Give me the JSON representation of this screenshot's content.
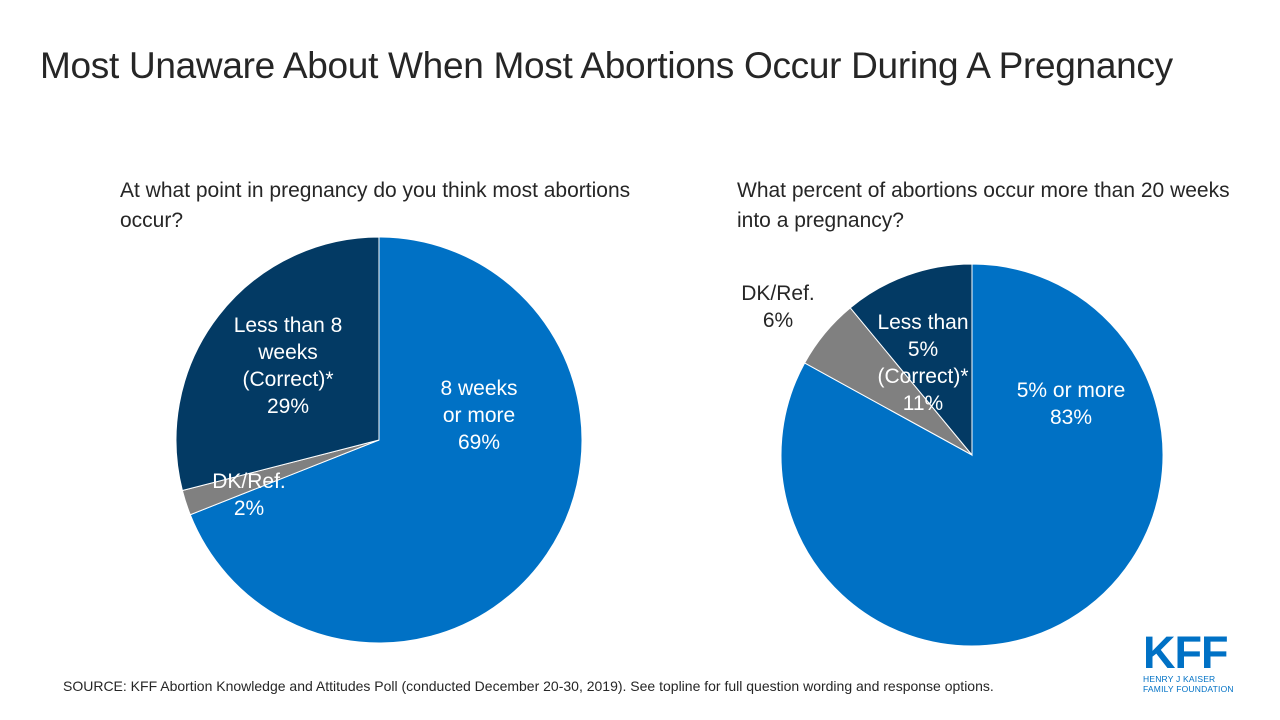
{
  "title": "Most Unaware About When Most Abortions Occur During A Pregnancy",
  "source": "SOURCE: KFF Abortion Knowledge and Attitudes Poll (conducted December 20-30, 2019). See topline for full question wording and response options.",
  "logo": {
    "word": "KFF",
    "line1": "HENRY J KAISER",
    "line2": "FAMILY FOUNDATION"
  },
  "colors": {
    "blue": "#0071c5",
    "navy": "#033a64",
    "gray": "#808080"
  },
  "chart_data": [
    {
      "type": "pie",
      "title": "At what point in pregnancy do you think most abortions occur?",
      "slices": [
        {
          "label_lines": [
            "8 weeks",
            "or more",
            "69%"
          ],
          "category": "8 weeks or more",
          "value": 69,
          "color": "#0071c5"
        },
        {
          "label_lines": [
            "DK/Ref.",
            "2%"
          ],
          "category": "DK/Ref.",
          "value": 2,
          "color": "#808080"
        },
        {
          "label_lines": [
            "Less than 8",
            "weeks",
            "(Correct)*",
            "29%"
          ],
          "category": "Less than 8 weeks (Correct)*",
          "value": 29,
          "color": "#033a64"
        }
      ]
    },
    {
      "type": "pie",
      "title": "What percent of abortions occur more than 20 weeks into a pregnancy?",
      "slices": [
        {
          "label_lines": [
            "5% or more",
            "83%"
          ],
          "category": "5% or more",
          "value": 83,
          "color": "#0071c5"
        },
        {
          "label_lines": [
            "DK/Ref.",
            "6%"
          ],
          "category": "DK/Ref.",
          "value": 6,
          "color": "#808080"
        },
        {
          "label_lines": [
            "Less than",
            "5%",
            "(Correct)*",
            "11%"
          ],
          "category": "Less than 5% (Correct)*",
          "value": 11,
          "color": "#033a64"
        }
      ]
    }
  ]
}
